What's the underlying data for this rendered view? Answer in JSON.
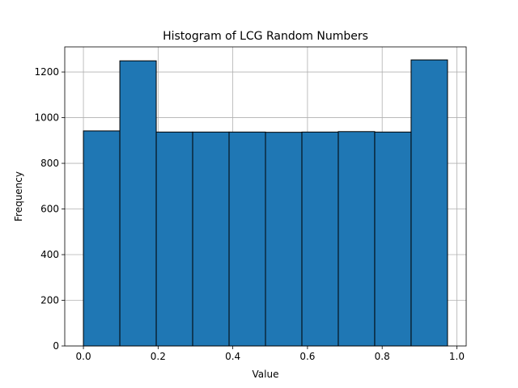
{
  "chart_data": {
    "type": "bar",
    "title": "Histogram of LCG Random Numbers",
    "xlabel": "Value",
    "ylabel": "Frequency",
    "xlim": [
      -0.05,
      1.025
    ],
    "ylim": [
      0,
      1310
    ],
    "xticks": [
      0.0,
      0.2,
      0.4,
      0.6,
      0.8,
      1.0
    ],
    "xtick_labels": [
      "0.0",
      "0.2",
      "0.4",
      "0.6",
      "0.8",
      "1.0"
    ],
    "yticks": [
      0,
      200,
      400,
      600,
      800,
      1000,
      1200
    ],
    "ytick_labels": [
      "0",
      "200",
      "400",
      "600",
      "800",
      "1000",
      "1200"
    ],
    "bin_edges": [
      0.0,
      0.0975,
      0.195,
      0.2925,
      0.39,
      0.4875,
      0.585,
      0.6825,
      0.78,
      0.8775,
      0.975
    ],
    "values": [
      942,
      1249,
      937,
      937,
      937,
      936,
      937,
      939,
      937,
      1253
    ],
    "bar_color": "#1f77b4",
    "edge_color": "#000000",
    "grid": true
  }
}
